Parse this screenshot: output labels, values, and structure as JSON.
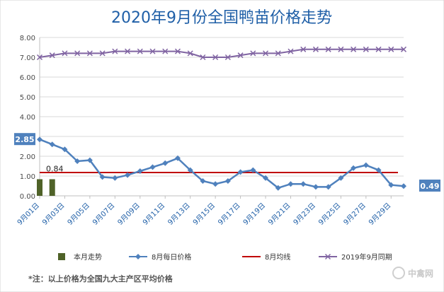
{
  "chart_data": {
    "type": "line",
    "title": "2020年9月份全国鸭苗价格走势",
    "ylim": [
      0,
      8
    ],
    "y_ticks": [
      "0.00",
      "1.00",
      "2.00",
      "3.00",
      "4.00",
      "5.00",
      "6.00",
      "7.00",
      "8.00"
    ],
    "grid": true,
    "legend_position": "bottom",
    "x_labels": [
      "9月01日",
      "9月03日",
      "9月05日",
      "9月07日",
      "9月09日",
      "9月11日",
      "9月13日",
      "9月15日",
      "9月17日",
      "9月19日",
      "9月21日",
      "9月23日",
      "9月25日",
      "9月27日",
      "9月29日"
    ],
    "series": [
      {
        "name": "本月走势",
        "kind": "bar",
        "color": "#4f6228",
        "points": [
          [
            1,
            0.84
          ],
          [
            2,
            0.84
          ]
        ],
        "label": "0.84"
      },
      {
        "name": "8月每日价格",
        "kind": "line",
        "marker": "diamond",
        "color": "#4f81bd",
        "values": [
          2.85,
          2.6,
          2.35,
          1.75,
          1.8,
          0.95,
          0.9,
          1.05,
          1.25,
          1.45,
          1.65,
          1.9,
          1.3,
          0.75,
          0.6,
          0.75,
          1.2,
          1.3,
          0.9,
          0.4,
          0.6,
          0.6,
          0.45,
          0.45,
          0.9,
          1.4,
          1.55,
          1.3,
          0.55,
          0.49
        ],
        "start_label": "2.85",
        "end_label": "0.49"
      },
      {
        "name": "8月均线",
        "kind": "hline",
        "color": "#c00000",
        "value": 1.18
      },
      {
        "name": "2019年9月同期",
        "kind": "line",
        "marker": "x",
        "color": "#8064a2",
        "values": [
          7.0,
          7.1,
          7.2,
          7.2,
          7.2,
          7.2,
          7.3,
          7.3,
          7.3,
          7.3,
          7.3,
          7.3,
          7.2,
          7.0,
          7.0,
          7.0,
          7.1,
          7.2,
          7.2,
          7.2,
          7.3,
          7.4,
          7.4,
          7.4,
          7.4,
          7.4,
          7.4,
          7.4,
          7.4,
          7.4
        ]
      }
    ]
  },
  "footnote": "*注：以上价格为全国九大主产区平均价格",
  "watermark": "中禽网"
}
